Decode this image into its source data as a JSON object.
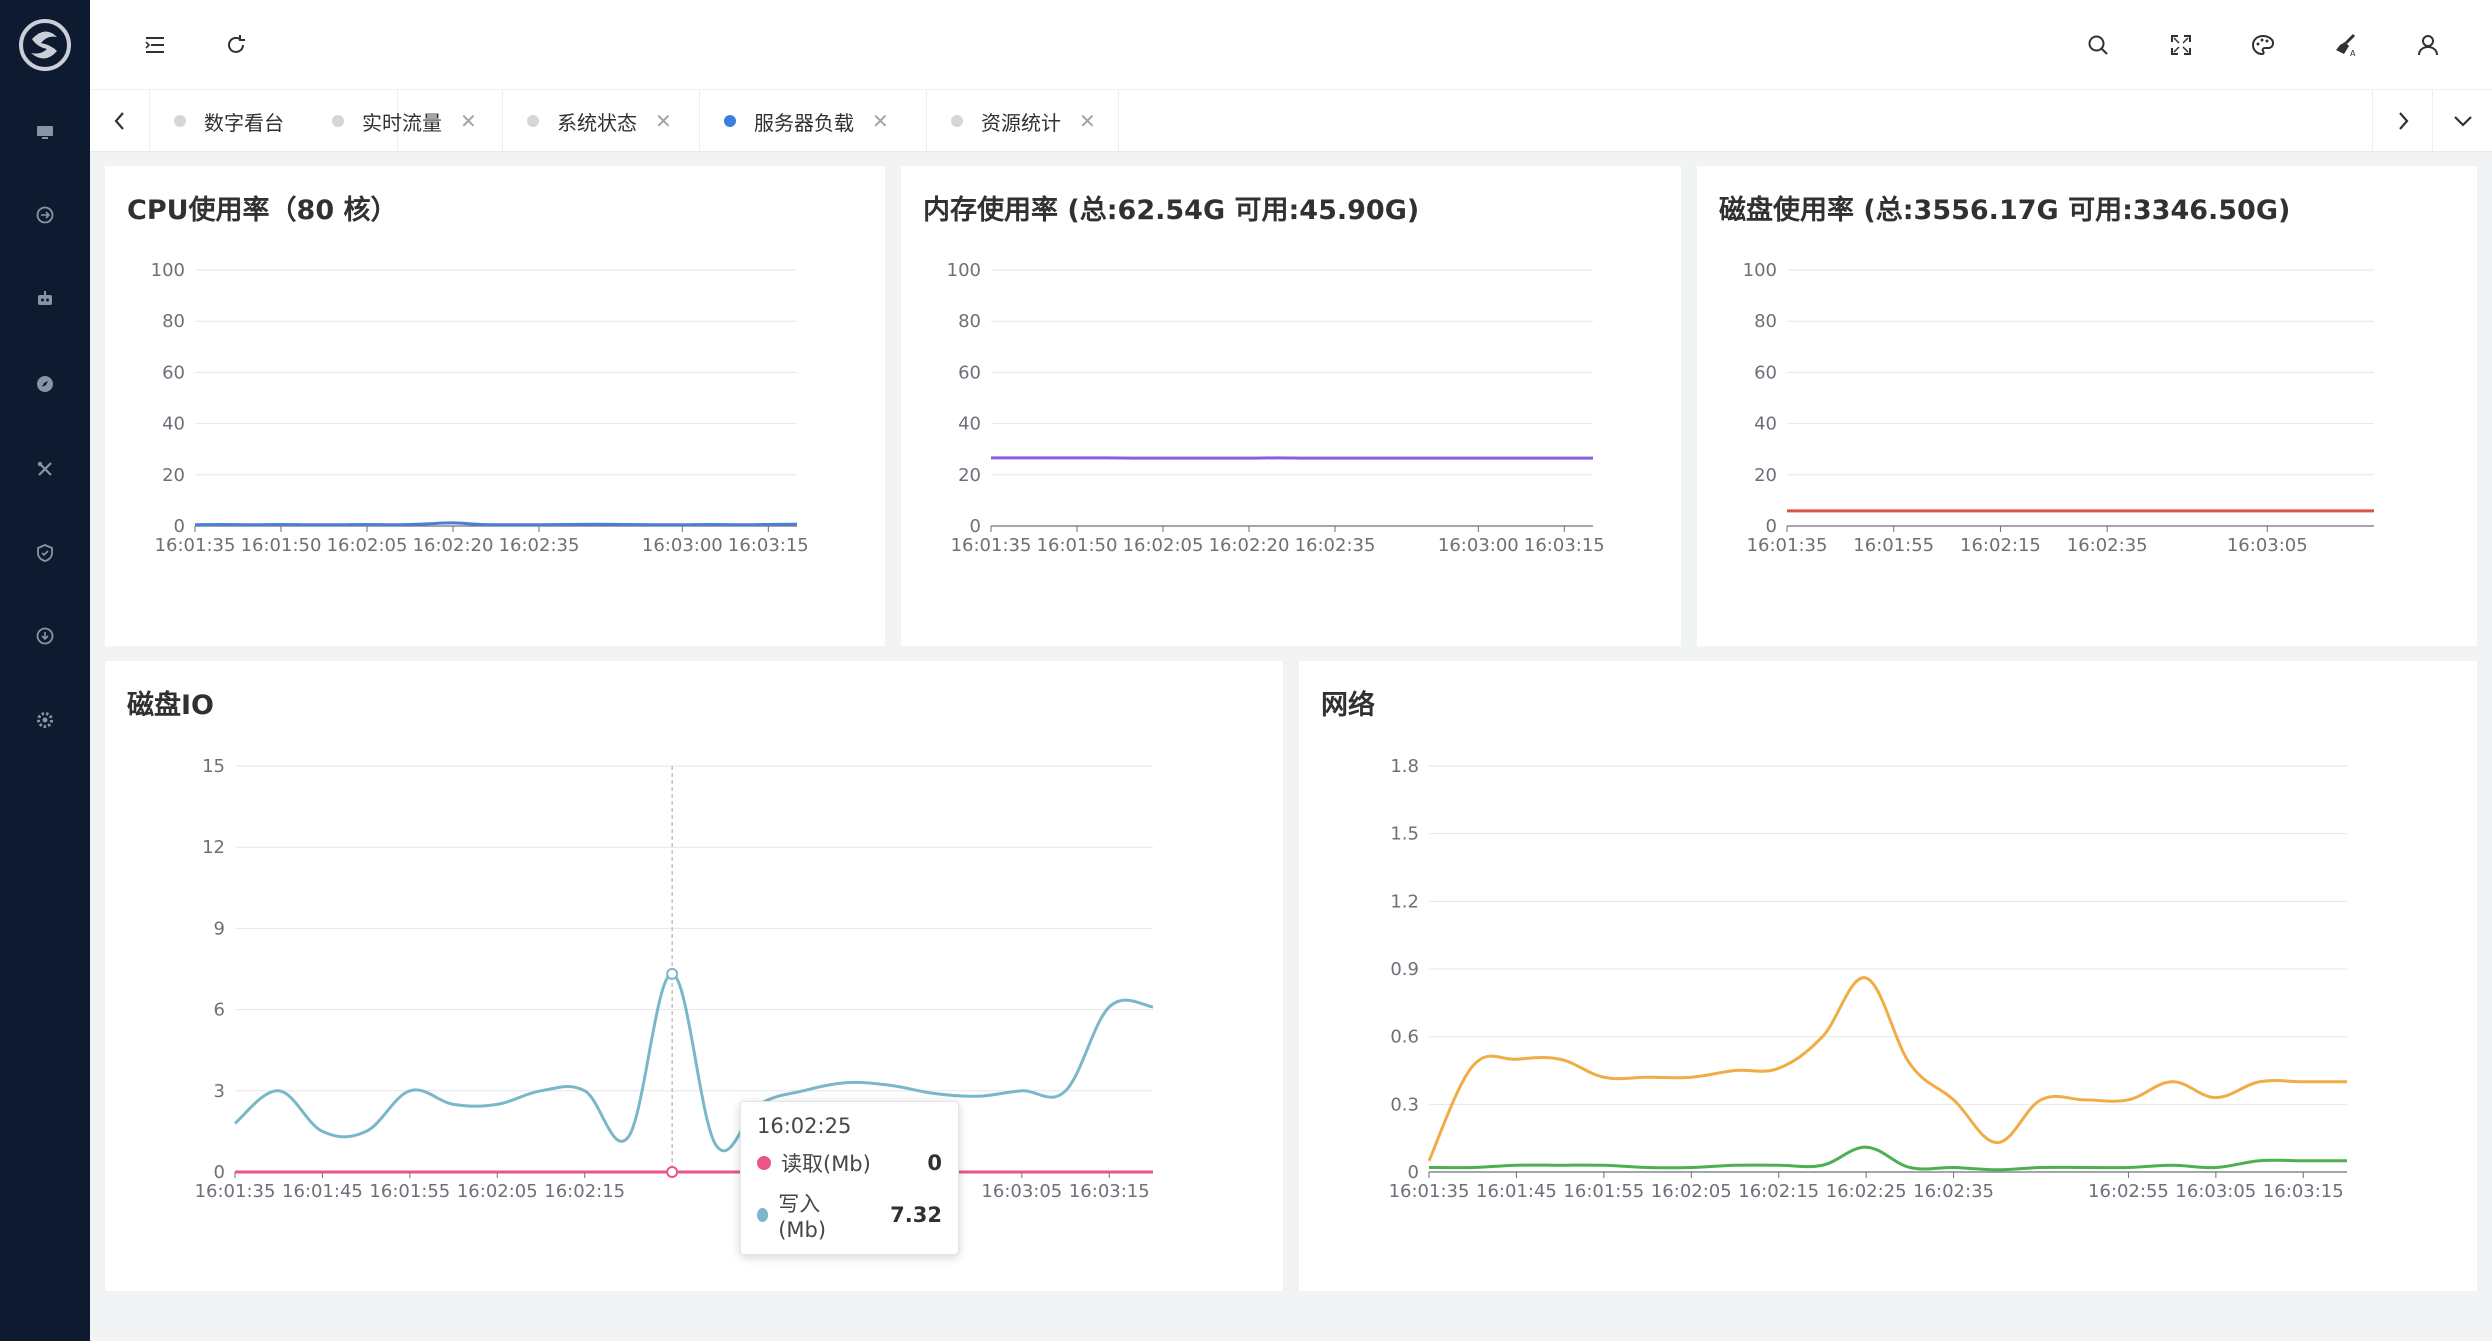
{
  "sidebar": {
    "items": [
      {
        "icon": "monitor-icon"
      },
      {
        "icon": "exchange-icon"
      },
      {
        "icon": "robot-icon"
      },
      {
        "icon": "compass-icon"
      },
      {
        "icon": "tools-icon"
      },
      {
        "icon": "shield-icon"
      },
      {
        "icon": "download-icon"
      },
      {
        "icon": "gear-icon"
      }
    ]
  },
  "header": {
    "icons": [
      "menu-fold-icon",
      "refresh-icon",
      "search-icon",
      "fullscreen-icon",
      "palette-icon",
      "brush-icon",
      "user-icon"
    ]
  },
  "tabs": [
    {
      "label": "数字看台",
      "closable": false,
      "active": false
    },
    {
      "label": "实时流量",
      "closable": true,
      "active": false
    },
    {
      "label": "系统状态",
      "closable": true,
      "active": false
    },
    {
      "label": "服务器负载",
      "closable": true,
      "active": true
    },
    {
      "label": "资源统计",
      "closable": true,
      "active": false
    }
  ],
  "tab_close_glyph": "✕",
  "cards": {
    "cpu": {
      "title": "CPU使用率（80 核）"
    },
    "memory": {
      "title": "内存使用率 (总:62.54G 可用:45.90G)"
    },
    "disk": {
      "title": "磁盘使用率 (总:3556.17G 可用:3346.50G)"
    },
    "diskio": {
      "title": "磁盘IO"
    },
    "network": {
      "title": "网络"
    }
  },
  "tooltip": {
    "time": "16:02:25",
    "rows": [
      {
        "label": "读取(Mb)",
        "value": "0"
      },
      {
        "label": "写入(Mb)",
        "value": "7.32"
      }
    ]
  },
  "colors": {
    "cpu": "#4a7fd4",
    "memory": "#8b5fe0",
    "disk": "#d9534f",
    "io_read": "#e8558a",
    "io_write": "#79b7c9",
    "net_a": "#f0ad45",
    "net_b": "#4caf50"
  },
  "chart_data": [
    {
      "type": "line",
      "id": "cpu",
      "x": [
        "16:01:35",
        "16:01:40",
        "16:01:45",
        "16:01:50",
        "16:01:55",
        "16:02:00",
        "16:02:05",
        "16:02:10",
        "16:02:15",
        "16:02:20",
        "16:02:25",
        "16:02:30",
        "16:02:35",
        "16:02:40",
        "16:02:45",
        "16:02:50",
        "16:02:55",
        "16:03:00",
        "16:03:05",
        "16:03:10",
        "16:03:15",
        "16:03:20"
      ],
      "xticks": [
        "16:01:35",
        "16:01:50",
        "16:02:05",
        "16:02:20",
        "16:02:35",
        "16:03:00",
        "16:03:15"
      ],
      "series": [
        {
          "values": [
            0.5,
            0.6,
            0.5,
            0.6,
            0.5,
            0.5,
            0.6,
            0.5,
            0.8,
            1.2,
            0.6,
            0.5,
            0.5,
            0.6,
            0.7,
            0.6,
            0.5,
            0.5,
            0.6,
            0.5,
            0.6,
            0.7
          ]
        }
      ],
      "ylim": [
        0,
        100
      ],
      "yticks": [
        0,
        20,
        40,
        60,
        80,
        100
      ]
    },
    {
      "type": "line",
      "id": "memory",
      "x": [
        "16:01:35",
        "16:01:40",
        "16:01:45",
        "16:01:50",
        "16:01:55",
        "16:02:00",
        "16:02:05",
        "16:02:10",
        "16:02:15",
        "16:02:20",
        "16:02:25",
        "16:02:30",
        "16:02:35",
        "16:02:40",
        "16:02:45",
        "16:02:50",
        "16:02:55",
        "16:03:00",
        "16:03:05",
        "16:03:10",
        "16:03:15",
        "16:03:20"
      ],
      "xticks": [
        "16:01:35",
        "16:01:50",
        "16:02:05",
        "16:02:20",
        "16:02:35",
        "16:03:00",
        "16:03:15"
      ],
      "series": [
        {
          "values": [
            26.6,
            26.6,
            26.6,
            26.6,
            26.6,
            26.5,
            26.5,
            26.5,
            26.5,
            26.5,
            26.6,
            26.5,
            26.5,
            26.5,
            26.5,
            26.5,
            26.5,
            26.5,
            26.5,
            26.5,
            26.5,
            26.5
          ]
        }
      ],
      "ylim": [
        0,
        100
      ],
      "yticks": [
        0,
        20,
        40,
        60,
        80,
        100
      ]
    },
    {
      "type": "line",
      "id": "disk",
      "x": [
        "16:01:35",
        "16:01:45",
        "16:01:55",
        "16:02:05",
        "16:02:15",
        "16:02:25",
        "16:02:35",
        "16:02:45",
        "16:02:55",
        "16:03:05",
        "16:03:15",
        "16:03:25"
      ],
      "xticks": [
        "16:01:35",
        "16:01:55",
        "16:02:15",
        "16:02:35",
        "16:03:05"
      ],
      "series": [
        {
          "values": [
            5.9,
            5.9,
            5.9,
            5.9,
            5.9,
            5.9,
            5.9,
            5.9,
            5.9,
            5.9,
            5.9,
            5.9
          ]
        }
      ],
      "ylim": [
        0,
        100
      ],
      "yticks": [
        0,
        20,
        40,
        60,
        80,
        100
      ]
    },
    {
      "type": "line",
      "id": "diskio",
      "x": [
        "16:01:35",
        "16:01:40",
        "16:01:45",
        "16:01:50",
        "16:01:55",
        "16:02:00",
        "16:02:05",
        "16:02:10",
        "16:02:15",
        "16:02:20",
        "16:02:25",
        "16:02:30",
        "16:02:35",
        "16:02:40",
        "16:02:45",
        "16:02:50",
        "16:02:55",
        "16:03:00",
        "16:03:05",
        "16:03:10",
        "16:03:15",
        "16:03:20"
      ],
      "xticks": [
        "16:01:35",
        "16:01:45",
        "16:01:55",
        "16:02:05",
        "16:02:15",
        "16:02:2",
        "16:03:05",
        "16:03:15"
      ],
      "series": [
        {
          "name": "读取(Mb)",
          "values": [
            0,
            0,
            0,
            0,
            0,
            0,
            0,
            0,
            0,
            0,
            0,
            0,
            0,
            0,
            0,
            0,
            0,
            0,
            0,
            0,
            0,
            0
          ]
        },
        {
          "name": "写入(Mb)",
          "values": [
            1.8,
            3.0,
            1.5,
            1.5,
            3.0,
            2.5,
            2.5,
            3.0,
            3.0,
            1.3,
            7.32,
            1.0,
            2.5,
            3.0,
            3.3,
            3.2,
            2.9,
            2.8,
            3.0,
            3.0,
            6.1,
            6.1
          ]
        }
      ],
      "ylim": [
        0,
        15
      ],
      "yticks": [
        0,
        3,
        6,
        9,
        12,
        15
      ]
    },
    {
      "type": "line",
      "id": "network",
      "x": [
        "16:01:35",
        "16:01:40",
        "16:01:45",
        "16:01:50",
        "16:01:55",
        "16:02:00",
        "16:02:05",
        "16:02:10",
        "16:02:15",
        "16:02:20",
        "16:02:25",
        "16:02:30",
        "16:02:35",
        "16:02:40",
        "16:02:45",
        "16:02:50",
        "16:02:55",
        "16:03:00",
        "16:03:05",
        "16:03:10",
        "16:03:15",
        "16:03:20"
      ],
      "xticks": [
        "16:01:35",
        "16:01:45",
        "16:01:55",
        "16:02:05",
        "16:02:15",
        "16:02:25",
        "16:02:35",
        "16:02:55",
        "16:03:05",
        "16:03:15"
      ],
      "series": [
        {
          "values": [
            0.05,
            0.47,
            0.5,
            0.5,
            0.42,
            0.42,
            0.42,
            0.45,
            0.46,
            0.6,
            0.86,
            0.48,
            0.32,
            0.13,
            0.32,
            0.32,
            0.32,
            0.4,
            0.33,
            0.4,
            0.4,
            0.4
          ]
        },
        {
          "values": [
            0.02,
            0.02,
            0.03,
            0.03,
            0.03,
            0.02,
            0.02,
            0.03,
            0.03,
            0.03,
            0.11,
            0.02,
            0.02,
            0.01,
            0.02,
            0.02,
            0.02,
            0.03,
            0.02,
            0.05,
            0.05,
            0.05
          ]
        }
      ],
      "ylim": [
        0,
        1.8
      ],
      "yticks": [
        0,
        0.3,
        0.6,
        0.9,
        1.2,
        1.5,
        1.8
      ]
    }
  ]
}
